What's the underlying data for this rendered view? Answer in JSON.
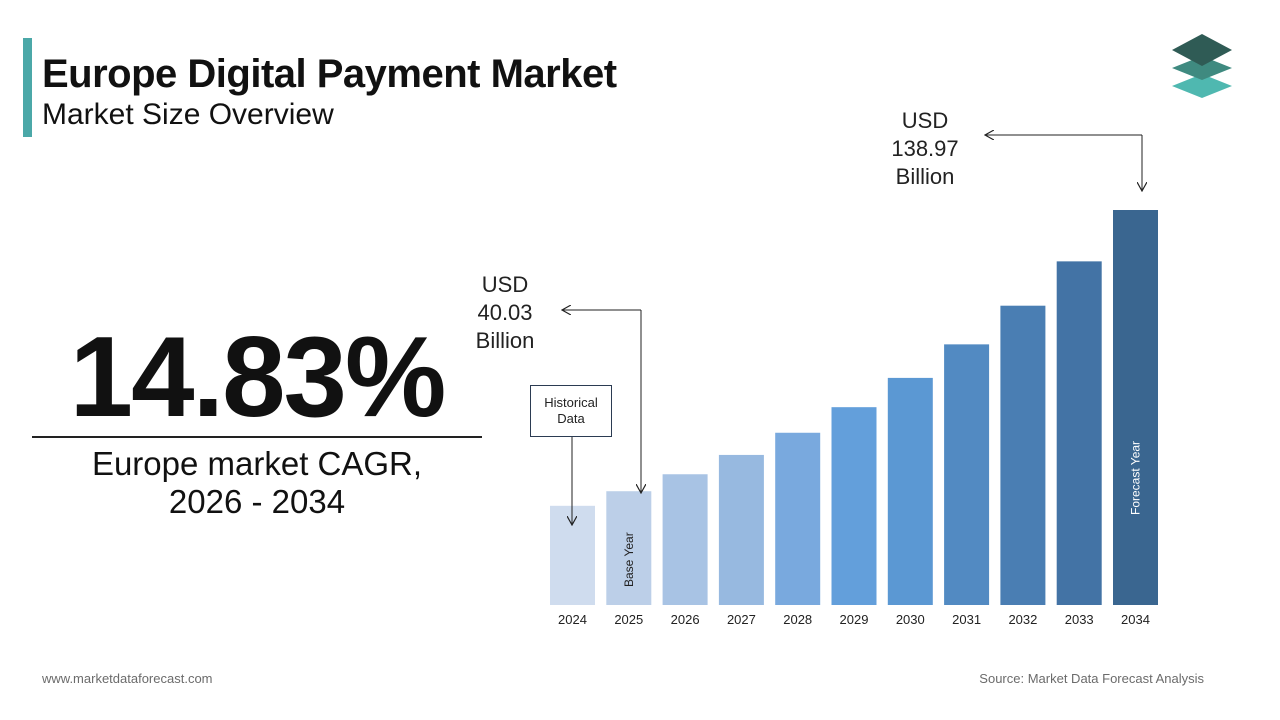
{
  "header": {
    "title": "Europe Digital Payment Market",
    "subtitle": "Market Size Overview"
  },
  "logo": {
    "icon": "stacked-layers-logo-icon"
  },
  "kpi": {
    "cagr_value": "14.83%",
    "cagr_label_line1": "Europe market CAGR,",
    "cagr_label_line2": "2026 - 2034"
  },
  "callouts": {
    "start": {
      "line1": "USD",
      "line2": "40.03",
      "line3": "Billion"
    },
    "end": {
      "line1": "USD",
      "line2": "138.97",
      "line3": "Billion"
    },
    "historical_box": "Historical Data"
  },
  "footer": {
    "website": "www.marketdataforecast.com",
    "source": "Source: Market Data Forecast Analysis"
  },
  "colors": {
    "accent": "#4ba8a8",
    "logo_dark": "#2f5b55",
    "logo_mid": "#3f8a80",
    "logo_light": "#4fb8b0"
  },
  "chart_data": {
    "type": "bar",
    "categories": [
      "2024",
      "2025",
      "2026",
      "2027",
      "2028",
      "2029",
      "2030",
      "2031",
      "2032",
      "2033",
      "2034"
    ],
    "values": [
      34.9,
      40.03,
      46.0,
      52.8,
      60.6,
      69.6,
      79.9,
      91.7,
      105.3,
      120.9,
      138.97
    ],
    "bar_labels": {
      "2025": "Base Year",
      "2034": "Forecast Year"
    },
    "bar_colors": [
      "#cfdcee",
      "#bccfe8",
      "#a8c3e4",
      "#97b9e0",
      "#79a9de",
      "#639fdb",
      "#5b98d3",
      "#528ac2",
      "#4a7eb3",
      "#4373a5",
      "#3a6690"
    ],
    "xlabel": "",
    "ylabel": "",
    "grid": false,
    "legend": "none"
  }
}
